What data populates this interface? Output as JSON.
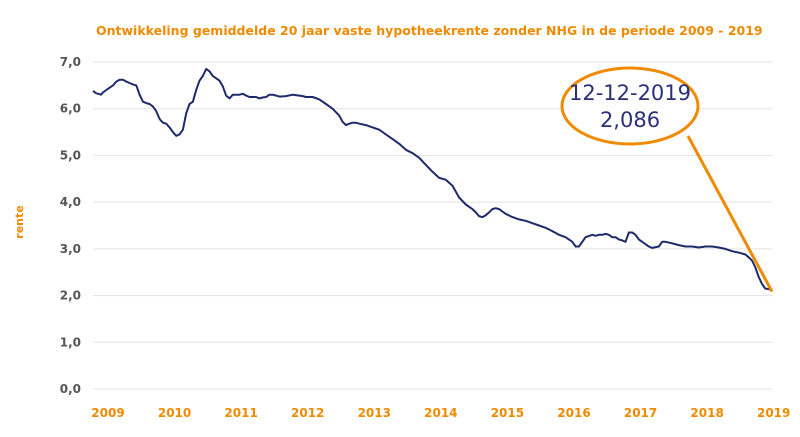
{
  "chart_data": {
    "type": "line",
    "title": "Ontwikkeling gemiddelde 20 jaar vaste hypotheekrente zonder NHG in de periode 2009 - 2019",
    "ylabel": "rente",
    "xlabel": "",
    "ylim": [
      0,
      7
    ],
    "yticks": [
      "0,0",
      "1,0",
      "2,0",
      "3,0",
      "4,0",
      "5,0",
      "6,0",
      "7,0"
    ],
    "xticks": [
      "2009",
      "2010",
      "2011",
      "2012",
      "2013",
      "2014",
      "2015",
      "2016",
      "2017",
      "2018",
      "2019"
    ],
    "grid": true,
    "legend": "none",
    "colors": {
      "series": "#1f2a6b",
      "accent": "#f08a00",
      "grid": "#e3e3e3"
    },
    "series": [
      {
        "x": [
          2009.0,
          2009.05,
          2009.08,
          2009.12,
          2009.15,
          2009.2,
          2009.25,
          2009.3,
          2009.35,
          2009.4,
          2009.45,
          2009.5,
          2009.55,
          2009.6,
          2009.65,
          2009.7,
          2009.75,
          2009.8,
          2009.85,
          2009.9,
          2009.95,
          2010.0,
          2010.05,
          2010.1,
          2010.15,
          2010.2,
          2010.25,
          2010.3,
          2010.35,
          2010.4,
          2010.45,
          2010.5,
          2010.55,
          2010.6,
          2010.65,
          2010.7,
          2010.75,
          2010.8,
          2010.85,
          2010.9,
          2010.95,
          2011.0,
          2011.05,
          2011.1,
          2011.15,
          2011.2,
          2011.25,
          2011.3,
          2011.35,
          2011.4,
          2011.45,
          2011.5,
          2011.55,
          2011.6,
          2011.65,
          2011.7,
          2011.75,
          2011.8,
          2011.9,
          2012.0,
          2012.1,
          2012.15,
          2012.2,
          2012.3,
          2012.4,
          2012.5,
          2012.6,
          2012.7,
          2012.75,
          2012.8,
          2012.85,
          2012.9,
          2012.95,
          2013.0,
          2013.1,
          2013.2,
          2013.3,
          2013.4,
          2013.5,
          2013.6,
          2013.7,
          2013.8,
          2013.9,
          2014.0,
          2014.1,
          2014.2,
          2014.3,
          2014.4,
          2014.5,
          2014.6,
          2014.7,
          2014.75,
          2014.8,
          2014.85,
          2014.9,
          2014.95,
          2015.0,
          2015.05,
          2015.1,
          2015.15,
          2015.2,
          2015.3,
          2015.4,
          2015.5,
          2015.6,
          2015.7,
          2015.8,
          2015.9,
          2016.0,
          2016.1,
          2016.2,
          2016.25,
          2016.3,
          2016.35,
          2016.4,
          2016.5,
          2016.55,
          2016.6,
          2016.65,
          2016.7,
          2016.75,
          2016.8,
          2016.85,
          2016.9,
          2016.95,
          2017.0,
          2017.05,
          2017.1,
          2017.15,
          2017.2,
          2017.25,
          2017.3,
          2017.35,
          2017.4,
          2017.5,
          2017.55,
          2017.6,
          2017.7,
          2017.8,
          2017.9,
          2018.0,
          2018.1,
          2018.2,
          2018.3,
          2018.4,
          2018.5,
          2018.6,
          2018.7,
          2018.8,
          2018.85,
          2018.9,
          2018.95,
          2019.0,
          2019.05,
          2019.1,
          2019.15,
          2019.2
        ],
        "values": [
          6.38,
          6.33,
          6.32,
          6.3,
          6.35,
          6.4,
          6.45,
          6.5,
          6.58,
          6.62,
          6.62,
          6.58,
          6.55,
          6.52,
          6.5,
          6.3,
          6.15,
          6.12,
          6.1,
          6.05,
          5.95,
          5.78,
          5.7,
          5.68,
          5.6,
          5.5,
          5.42,
          5.45,
          5.55,
          5.9,
          6.1,
          6.15,
          6.4,
          6.6,
          6.7,
          6.85,
          6.8,
          6.7,
          6.65,
          6.6,
          6.48,
          6.28,
          6.22,
          6.3,
          6.3,
          6.3,
          6.32,
          6.28,
          6.25,
          6.25,
          6.25,
          6.22,
          6.24,
          6.25,
          6.3,
          6.3,
          6.28,
          6.26,
          6.27,
          6.3,
          6.28,
          6.27,
          6.25,
          6.25,
          6.2,
          6.1,
          6.0,
          5.85,
          5.72,
          5.65,
          5.68,
          5.7,
          5.7,
          5.68,
          5.65,
          5.6,
          5.55,
          5.45,
          5.35,
          5.25,
          5.12,
          5.05,
          4.95,
          4.8,
          4.65,
          4.52,
          4.48,
          4.35,
          4.1,
          3.95,
          3.85,
          3.78,
          3.7,
          3.68,
          3.72,
          3.78,
          3.85,
          3.87,
          3.85,
          3.8,
          3.75,
          3.68,
          3.63,
          3.6,
          3.55,
          3.5,
          3.45,
          3.38,
          3.3,
          3.25,
          3.15,
          3.05,
          3.05,
          3.15,
          3.25,
          3.3,
          3.28,
          3.3,
          3.3,
          3.32,
          3.3,
          3.25,
          3.25,
          3.2,
          3.18,
          3.15,
          3.35,
          3.35,
          3.3,
          3.2,
          3.15,
          3.1,
          3.05,
          3.02,
          3.05,
          3.15,
          3.15,
          3.12,
          3.08,
          3.05,
          3.05,
          3.03,
          3.05,
          3.05,
          3.03,
          3.0,
          2.95,
          2.92,
          2.88,
          2.82,
          2.75,
          2.6,
          2.4,
          2.25,
          2.15,
          2.14,
          2.12
        ]
      }
    ],
    "annotation": {
      "date": "12-12-2019",
      "value": "2,086",
      "x": 2019.2,
      "y": 2.086
    }
  }
}
